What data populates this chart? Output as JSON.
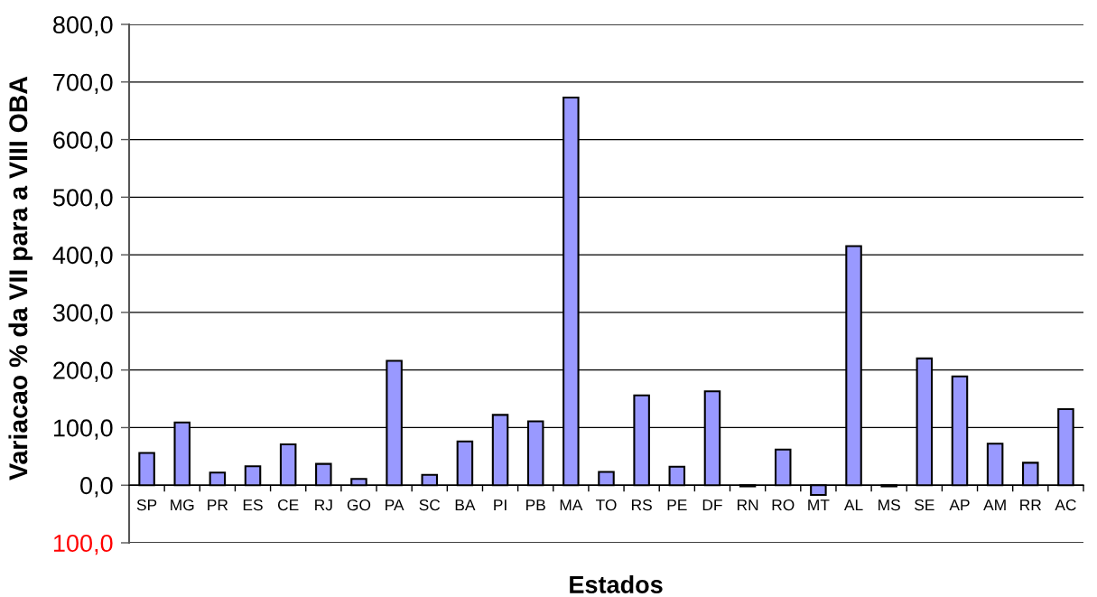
{
  "chart_data": {
    "type": "bar",
    "xlabel": "Estados",
    "ylabel": "Variacao % da VII para a VIII OBA",
    "categories": [
      "SP",
      "MG",
      "PR",
      "ES",
      "CE",
      "RJ",
      "GO",
      "PA",
      "SC",
      "BA",
      "PI",
      "PB",
      "MA",
      "TO",
      "RS",
      "PE",
      "DF",
      "RN",
      "RO",
      "MT",
      "AL",
      "MS",
      "SE",
      "AP",
      "AM",
      "RR",
      "AC"
    ],
    "values": [
      56,
      109,
      22,
      33,
      71,
      37,
      11,
      216,
      18,
      76,
      122,
      111,
      673,
      23,
      156,
      32,
      163,
      -2,
      62,
      -17,
      415,
      -2,
      220,
      189,
      72,
      39,
      132
    ],
    "color": "#9999ff",
    "ylim": [
      -100,
      800
    ],
    "yticks": [
      {
        "value": -100,
        "label": "100,0"
      },
      {
        "value": 0,
        "label": "0,0"
      },
      {
        "value": 100,
        "label": "100,0"
      },
      {
        "value": 200,
        "label": "200,0"
      },
      {
        "value": 300,
        "label": "300,0"
      },
      {
        "value": 400,
        "label": "400,0"
      },
      {
        "value": 500,
        "label": "500,0"
      },
      {
        "value": 600,
        "label": "600,0"
      },
      {
        "value": 700,
        "label": "700,0"
      },
      {
        "value": 800,
        "label": "800,0"
      }
    ],
    "grid": "y"
  }
}
